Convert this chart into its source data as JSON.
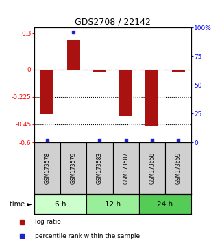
{
  "title": "GDS2708 / 22142",
  "samples": [
    "GSM173578",
    "GSM173579",
    "GSM173583",
    "GSM173587",
    "GSM173658",
    "GSM173659"
  ],
  "log_ratios": [
    -0.37,
    0.25,
    -0.02,
    -0.38,
    -0.47,
    -0.02
  ],
  "percentile_ranks": [
    2,
    96,
    2,
    2,
    2,
    2
  ],
  "bar_color": "#aa1111",
  "dot_color": "#2222cc",
  "ylim_left": [
    -0.6,
    0.35
  ],
  "ylim_right": [
    0,
    100
  ],
  "yticks_left": [
    0.3,
    0,
    -0.225,
    -0.45,
    -0.6
  ],
  "ytick_labels_left": [
    "0.3",
    "0",
    "-0.225",
    "-0.45",
    "-0.6"
  ],
  "yticks_right": [
    100,
    75,
    50,
    25,
    0
  ],
  "ytick_labels_right": [
    "100%",
    "75",
    "50",
    "25",
    "0"
  ],
  "hlines": [
    {
      "y": 0,
      "color": "#cc0000",
      "linestyle": "dashdot",
      "linewidth": 0.8
    },
    {
      "y": -0.225,
      "color": "black",
      "linestyle": "dotted",
      "linewidth": 0.8
    },
    {
      "y": -0.45,
      "color": "black",
      "linestyle": "dotted",
      "linewidth": 0.8
    }
  ],
  "time_groups": [
    {
      "label": "6 h",
      "start": 0,
      "end": 2,
      "color": "#ccffcc"
    },
    {
      "label": "12 h",
      "start": 2,
      "end": 4,
      "color": "#99ee99"
    },
    {
      "label": "24 h",
      "start": 4,
      "end": 6,
      "color": "#55cc55"
    }
  ],
  "legend_items": [
    {
      "label": "log ratio",
      "color": "#aa1111"
    },
    {
      "label": "percentile rank within the sample",
      "color": "#2222cc"
    }
  ],
  "time_label": "time ►",
  "bar_width": 0.5,
  "sample_box_color": "#d0d0d0",
  "background_color": "#ffffff"
}
